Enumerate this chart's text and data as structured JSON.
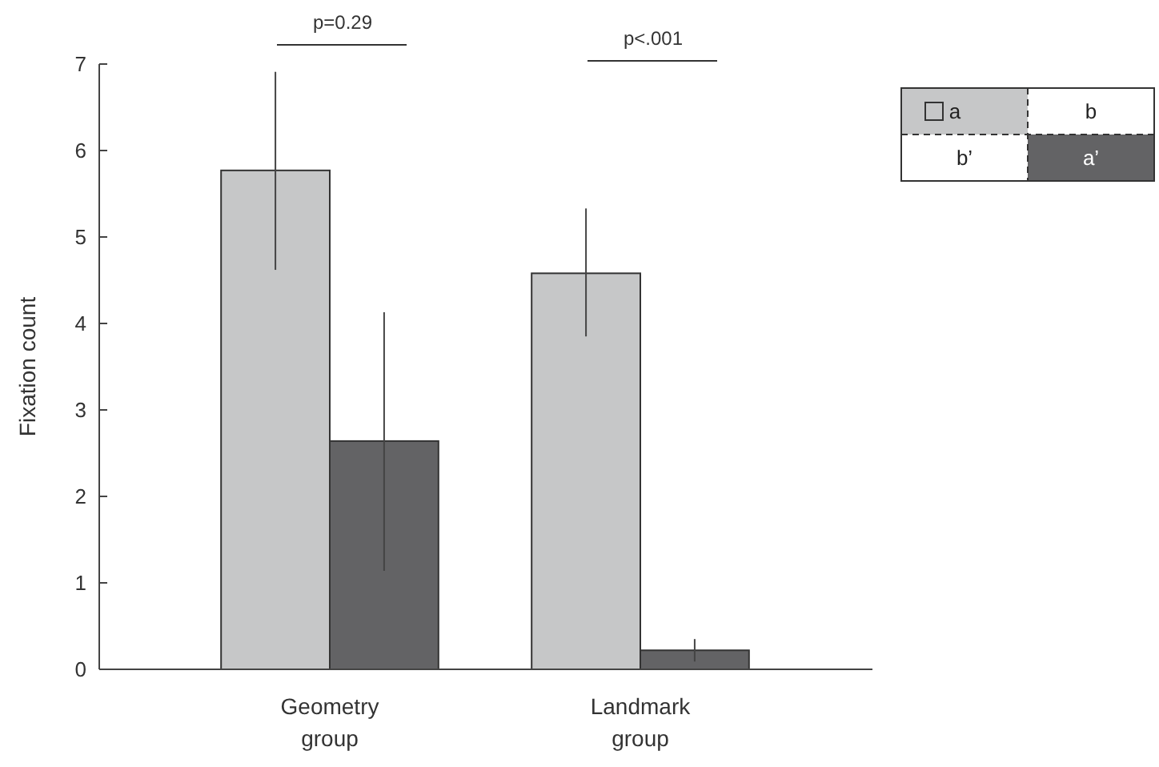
{
  "chart_data": {
    "type": "bar",
    "ylabel": "Fixation count",
    "categories": [
      "Geometry group",
      "Landmark group"
    ],
    "series": [
      {
        "color": "#c6c7c8",
        "values": [
          5.77,
          4.58
        ],
        "errors": [
          [
            4.62,
            6.91
          ],
          [
            3.85,
            5.33
          ]
        ]
      },
      {
        "color": "#636365",
        "values": [
          2.64,
          0.22
        ],
        "errors": [
          [
            1.14,
            4.13
          ],
          [
            0.09,
            0.35
          ]
        ]
      }
    ],
    "ylim": [
      0,
      7
    ],
    "yticks": [
      0,
      1,
      2,
      3,
      4,
      5,
      6,
      7
    ],
    "grid": false,
    "annotations": [
      "p=0.29",
      "p<.001",
      "a",
      "b",
      "b’",
      "a’"
    ]
  }
}
